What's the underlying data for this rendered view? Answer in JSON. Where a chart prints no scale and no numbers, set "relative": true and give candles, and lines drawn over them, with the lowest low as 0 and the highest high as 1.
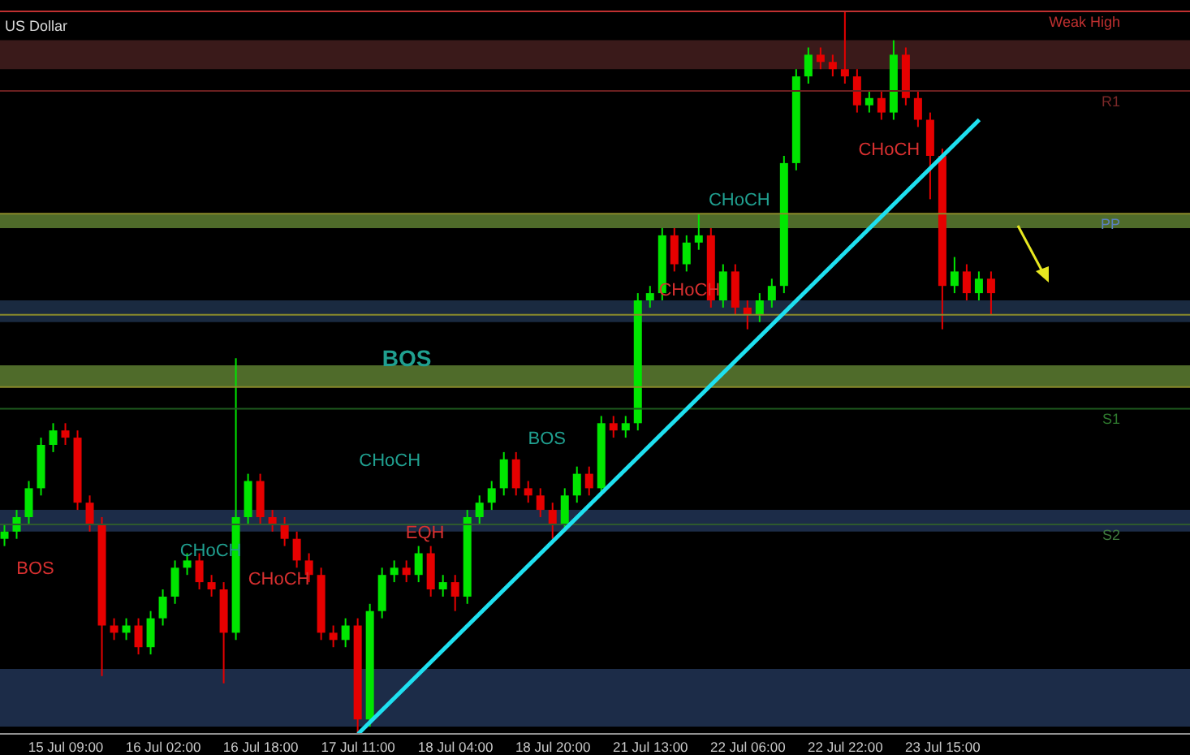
{
  "chart_data": {
    "type": "candlestick",
    "title": "US Dollar",
    "relative": true,
    "categories": [
      null,
      null,
      null,
      null,
      null,
      "15 Jul 09:00",
      null,
      null,
      null,
      null,
      null,
      null,
      null,
      "16 Jul 02:00",
      null,
      null,
      null,
      null,
      null,
      null,
      null,
      "16 Jul 18:00",
      null,
      null,
      null,
      null,
      null,
      null,
      null,
      "17 Jul 11:00",
      null,
      null,
      null,
      null,
      null,
      null,
      null,
      "18 Jul 04:00",
      null,
      null,
      null,
      null,
      null,
      null,
      null,
      "18 Jul 20:00",
      null,
      null,
      null,
      null,
      null,
      null,
      null,
      "21 Jul 13:00",
      null,
      null,
      null,
      null,
      null,
      null,
      null,
      "22 Jul 06:00",
      null,
      null,
      null,
      null,
      null,
      null,
      null,
      "22 Jul 22:00",
      null,
      null,
      null,
      null,
      null,
      null,
      null,
      "23 Jul 15:00",
      null,
      null,
      null,
      null,
      null,
      null,
      null,
      null,
      null,
      null,
      null,
      null,
      null,
      null,
      null,
      null,
      null,
      null,
      null,
      null
    ],
    "ohlc": [
      [
        0.27,
        0.29,
        0.26,
        0.28
      ],
      [
        0.28,
        0.31,
        0.27,
        0.3
      ],
      [
        0.3,
        0.35,
        0.29,
        0.34
      ],
      [
        0.34,
        0.41,
        0.33,
        0.4
      ],
      [
        0.4,
        0.43,
        0.39,
        0.42
      ],
      [
        0.42,
        0.43,
        0.4,
        0.41
      ],
      [
        0.41,
        0.42,
        0.31,
        0.32
      ],
      [
        0.32,
        0.33,
        0.28,
        0.29
      ],
      [
        0.29,
        0.3,
        0.08,
        0.15
      ],
      [
        0.15,
        0.16,
        0.13,
        0.14
      ],
      [
        0.14,
        0.16,
        0.13,
        0.15
      ],
      [
        0.15,
        0.16,
        0.11,
        0.12
      ],
      [
        0.12,
        0.17,
        0.11,
        0.16
      ],
      [
        0.16,
        0.2,
        0.15,
        0.19
      ],
      [
        0.19,
        0.24,
        0.18,
        0.23
      ],
      [
        0.23,
        0.25,
        0.22,
        0.24
      ],
      [
        0.24,
        0.25,
        0.2,
        0.21
      ],
      [
        0.21,
        0.22,
        0.19,
        0.2
      ],
      [
        0.2,
        0.21,
        0.07,
        0.14
      ],
      [
        0.14,
        0.52,
        0.13,
        0.3
      ],
      [
        0.3,
        0.36,
        0.29,
        0.35
      ],
      [
        0.35,
        0.36,
        0.29,
        0.3
      ],
      [
        0.3,
        0.31,
        0.28,
        0.29
      ],
      [
        0.29,
        0.3,
        0.26,
        0.27
      ],
      [
        0.27,
        0.28,
        0.23,
        0.24
      ],
      [
        0.24,
        0.25,
        0.21,
        0.22
      ],
      [
        0.22,
        0.23,
        0.13,
        0.14
      ],
      [
        0.14,
        0.15,
        0.12,
        0.13
      ],
      [
        0.13,
        0.16,
        0.12,
        0.15
      ],
      [
        0.15,
        0.16,
        0,
        0.02
      ],
      [
        0.02,
        0.18,
        0.01,
        0.17
      ],
      [
        0.17,
        0.23,
        0.16,
        0.22
      ],
      [
        0.22,
        0.24,
        0.21,
        0.23
      ],
      [
        0.23,
        0.24,
        0.21,
        0.22
      ],
      [
        0.22,
        0.26,
        0.21,
        0.25
      ],
      [
        0.25,
        0.26,
        0.19,
        0.2
      ],
      [
        0.2,
        0.22,
        0.19,
        0.21
      ],
      [
        0.21,
        0.22,
        0.17,
        0.19
      ],
      [
        0.19,
        0.31,
        0.18,
        0.3
      ],
      [
        0.3,
        0.33,
        0.29,
        0.32
      ],
      [
        0.32,
        0.35,
        0.31,
        0.34
      ],
      [
        0.34,
        0.39,
        0.33,
        0.38
      ],
      [
        0.38,
        0.39,
        0.33,
        0.34
      ],
      [
        0.34,
        0.35,
        0.32,
        0.33
      ],
      [
        0.33,
        0.34,
        0.3,
        0.31
      ],
      [
        0.31,
        0.32,
        0.27,
        0.29
      ],
      [
        0.29,
        0.34,
        0.28,
        0.33
      ],
      [
        0.33,
        0.37,
        0.32,
        0.36
      ],
      [
        0.36,
        0.37,
        0.33,
        0.34
      ],
      [
        0.34,
        0.44,
        0.33,
        0.43
      ],
      [
        0.43,
        0.44,
        0.41,
        0.42
      ],
      [
        0.42,
        0.44,
        0.41,
        0.43
      ],
      [
        0.43,
        0.61,
        0.42,
        0.6
      ],
      [
        0.6,
        0.62,
        0.59,
        0.61
      ],
      [
        0.61,
        0.7,
        0.6,
        0.69
      ],
      [
        0.69,
        0.7,
        0.64,
        0.65
      ],
      [
        0.65,
        0.69,
        0.64,
        0.68
      ],
      [
        0.68,
        0.72,
        0.67,
        0.69
      ],
      [
        0.69,
        0.7,
        0.59,
        0.6
      ],
      [
        0.6,
        0.65,
        0.59,
        0.64
      ],
      [
        0.64,
        0.65,
        0.58,
        0.59
      ],
      [
        0.59,
        0.6,
        0.56,
        0.58
      ],
      [
        0.58,
        0.61,
        0.57,
        0.6
      ],
      [
        0.6,
        0.63,
        0.59,
        0.62
      ],
      [
        0.62,
        0.8,
        0.61,
        0.79
      ],
      [
        0.79,
        0.92,
        0.78,
        0.91
      ],
      [
        0.91,
        0.95,
        0.9,
        0.94
      ],
      [
        0.94,
        0.95,
        0.92,
        0.93
      ],
      [
        0.93,
        0.94,
        0.91,
        0.92
      ],
      [
        0.92,
        1,
        0.9,
        0.91
      ],
      [
        0.91,
        0.92,
        0.86,
        0.87
      ],
      [
        0.87,
        0.89,
        0.86,
        0.88
      ],
      [
        0.88,
        0.89,
        0.85,
        0.86
      ],
      [
        0.86,
        0.96,
        0.85,
        0.94
      ],
      [
        0.94,
        0.95,
        0.87,
        0.88
      ],
      [
        0.88,
        0.89,
        0.84,
        0.85
      ],
      [
        0.85,
        0.86,
        0.74,
        0.8
      ],
      [
        0.8,
        0.81,
        0.56,
        0.62
      ],
      [
        0.62,
        0.66,
        0.61,
        0.64
      ],
      [
        0.64,
        0.65,
        0.6,
        0.61
      ],
      [
        0.61,
        0.64,
        0.6,
        0.63
      ],
      [
        0.63,
        0.64,
        0.58,
        0.61
      ],
      null,
      null,
      null,
      null,
      null,
      null,
      null,
      null,
      null,
      null,
      null,
      null,
      null,
      null,
      null,
      null
    ],
    "colors": [
      "#00e600",
      "#00e600",
      "#00e600",
      "#00e600",
      "#00e600",
      "#e60000",
      "#e60000",
      "#e60000",
      "#e60000",
      "#e60000",
      "#00e600",
      "#e60000",
      "#00e600",
      "#00e600",
      "#00e600",
      "#00e600",
      "#e60000",
      "#e60000",
      "#e60000",
      "#00e600",
      "#00e600",
      "#e60000",
      "#e60000",
      "#e60000",
      "#e60000",
      "#e60000",
      "#e60000",
      "#e60000",
      "#00e600",
      "#e60000",
      "#00e600",
      "#00e600",
      "#00e600",
      "#e60000",
      "#00e600",
      "#e60000",
      "#00e600",
      "#e60000",
      "#00e600",
      "#00e600",
      "#00e600",
      "#00e600",
      "#e60000",
      "#e60000",
      "#e60000",
      "#e60000",
      "#00e600",
      "#00e600",
      "#e60000",
      "#00e600",
      "#e60000",
      "#00e600",
      "#00e600",
      "#00e600",
      "#00e600",
      "#e60000",
      "#00e600",
      "#00e600",
      "#e60000",
      "#00e600",
      "#e60000",
      "#e60000",
      "#00e600",
      "#00e600",
      "#00e600",
      "#00e600",
      "#00e600",
      "#e60000",
      "#e60000",
      "#e60000",
      "#e60000",
      "#00e600",
      "#e60000",
      "#00e600",
      "#e60000",
      "#e60000",
      "#e60000",
      "#e60000",
      "#00e600",
      "#e60000",
      "#00e600",
      "#e60000",
      null,
      null,
      null,
      null,
      null,
      null,
      null,
      null,
      null,
      null,
      null,
      null,
      null,
      null,
      null,
      null
    ],
    "series": [
      {
        "type": "line",
        "color": "#1ee0f0",
        "values": [
          null,
          null,
          null,
          null,
          null,
          null,
          null,
          null,
          null,
          null,
          null,
          null,
          null,
          null,
          null,
          null,
          null,
          null,
          null,
          null,
          null,
          null,
          null,
          null,
          null,
          null,
          null,
          null,
          null,
          0,
          null,
          null,
          null,
          null,
          null,
          null,
          null,
          null,
          null,
          null,
          null,
          null,
          null,
          null,
          null,
          null,
          null,
          null,
          null,
          null,
          null,
          null,
          null,
          null,
          null,
          null,
          null,
          null,
          null,
          null,
          null,
          null,
          null,
          null,
          null,
          null,
          null,
          null,
          null,
          null,
          null,
          null,
          null,
          null,
          null,
          null,
          null,
          null,
          null,
          null,
          0.85,
          null,
          null,
          null,
          null,
          null,
          null,
          null,
          null,
          null,
          null,
          null,
          null,
          null,
          null,
          null,
          null,
          null
        ]
      }
    ],
    "bands": [
      {
        "axis": "y",
        "from": 0.01,
        "to": 0.09,
        "color": "#1c2c48"
      },
      {
        "axis": "y",
        "from": 0.28,
        "to": 0.31,
        "color": "#1c2c48"
      },
      {
        "axis": "y",
        "from": 0.48,
        "to": 0.51,
        "color": "#4f6b2a"
      },
      {
        "axis": "y",
        "from": 0.57,
        "to": 0.6,
        "color": "#1a2a40"
      },
      {
        "axis": "y",
        "from": 0.7,
        "to": 0.72,
        "color": "#4f6b2a"
      },
      {
        "axis": "y",
        "from": 0.92,
        "to": 0.96,
        "color": "#3a1a1a"
      }
    ],
    "ref_lines": [
      {
        "axis": "y",
        "value": 1,
        "label": "Weak High",
        "color": "#c03030"
      },
      {
        "axis": "y",
        "value": 0.89,
        "label": "R1",
        "color": "#6a2020"
      },
      {
        "axis": "y",
        "value": 0.72,
        "label": "PP",
        "color": "#8a8a2a"
      },
      {
        "axis": "y",
        "value": 0.58,
        "color": "#8a8a2a"
      },
      {
        "axis": "y",
        "value": 0.48,
        "color": "#8a8a2a"
      },
      {
        "axis": "y",
        "value": 0.45,
        "label": "S1",
        "color": "#1e5a1e"
      },
      {
        "axis": "y",
        "value": 0.29,
        "label": "S2",
        "color": "#2e5a2e"
      }
    ],
    "annotations": [
      "BOS",
      "CHoCH",
      "CHoCH",
      "CHoCH",
      "EQH",
      "BOS",
      "BOS",
      "CHoCH",
      "CHoCH",
      "CHoCH"
    ]
  }
}
